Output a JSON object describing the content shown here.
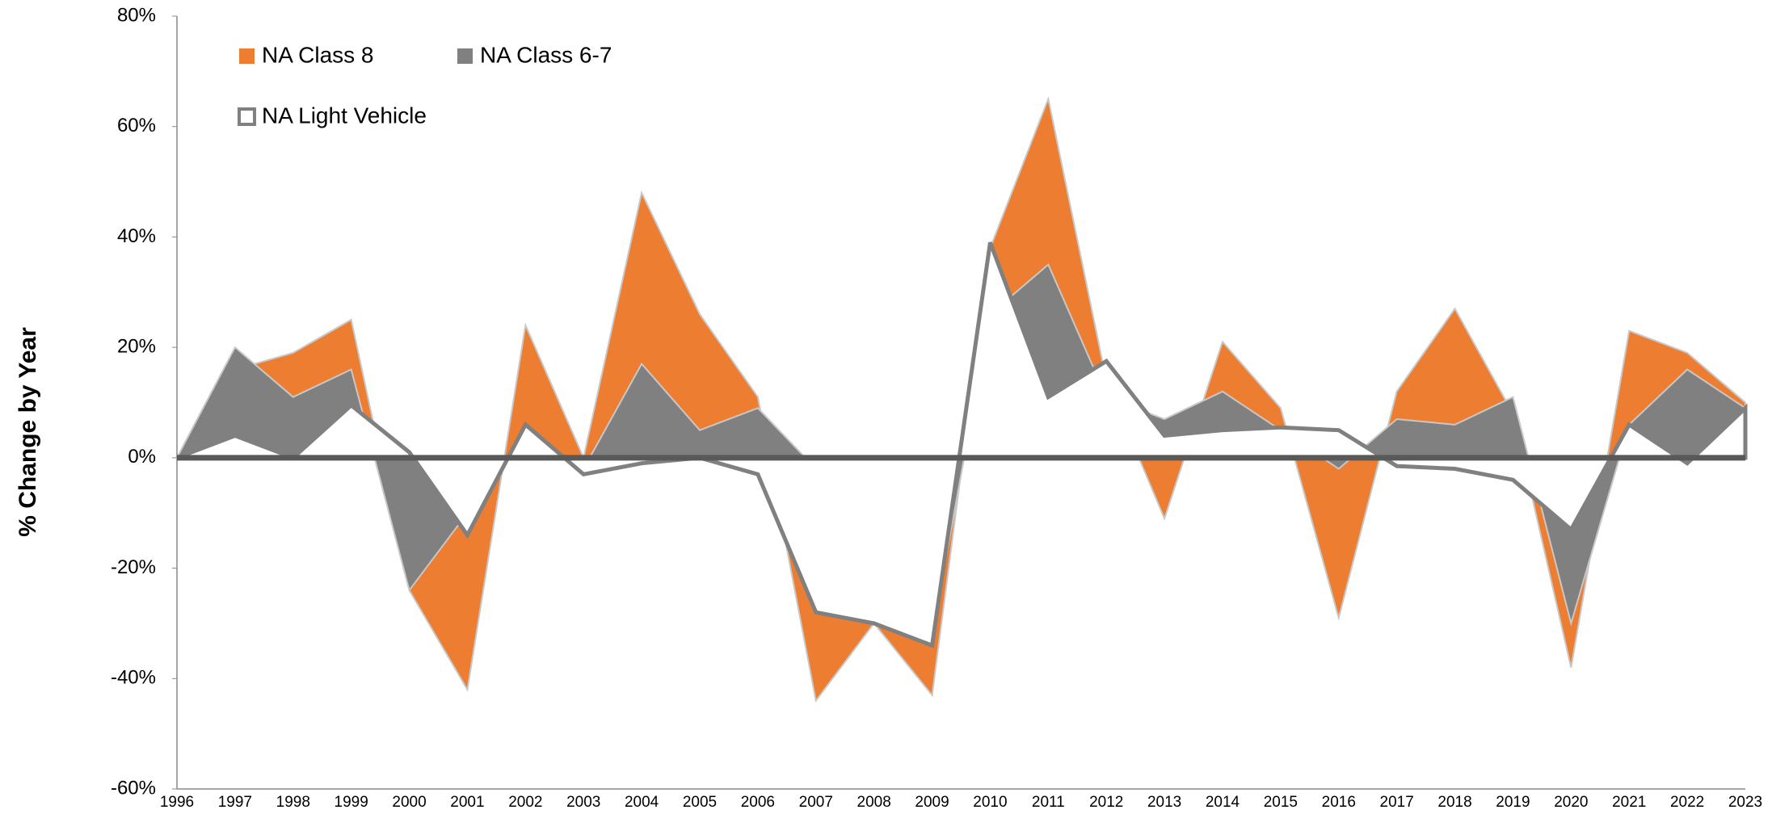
{
  "chart_data": {
    "type": "area",
    "y_axis_label": "% Change by Year",
    "categories": [
      "1996",
      "1997",
      "1998",
      "1999",
      "2000",
      "2001",
      "2002",
      "2003",
      "2004",
      "2005",
      "2006",
      "2007",
      "2008",
      "2009",
      "2010",
      "2011",
      "2012",
      "2013",
      "2014",
      "2015",
      "2016",
      "2017",
      "2018",
      "2019",
      "2020",
      "2021",
      "2022",
      "2023"
    ],
    "series": [
      {
        "name": "NA Class 8",
        "color": "#ed7d31",
        "style": "filled",
        "values": [
          0,
          16,
          19,
          25,
          -24,
          -42,
          24,
          0,
          48,
          26,
          11,
          -44,
          -30,
          -43,
          38,
          65,
          14,
          -11,
          21,
          9,
          -29,
          12,
          27,
          8,
          -38,
          23,
          19,
          10
        ]
      },
      {
        "name": "NA Class 6-7",
        "color": "#808080",
        "style": "filled",
        "values": [
          0,
          20,
          11,
          16,
          -24,
          -10,
          5,
          -2,
          17,
          5,
          9,
          -2,
          -16,
          -32,
          26,
          35,
          11,
          7,
          12,
          5,
          -2,
          7,
          6,
          11,
          -30,
          6,
          16,
          9
        ]
      },
      {
        "name": "NA Light Vehicle",
        "color": "#808080",
        "style": "outline",
        "values": [
          0,
          4,
          0,
          9.5,
          1,
          -14,
          6,
          -3,
          -1,
          0,
          -3,
          -28,
          -30,
          -34,
          39,
          11,
          17.5,
          4,
          5,
          5.5,
          5,
          -1.5,
          -2,
          -4,
          -13,
          6,
          -1,
          9
        ]
      }
    ],
    "ylim": [
      -60,
      80
    ],
    "yticks": [
      {
        "value": -60,
        "label": "-60%"
      },
      {
        "value": -40,
        "label": "-40%"
      },
      {
        "value": -20,
        "label": "-20%"
      },
      {
        "value": 0,
        "label": "0%"
      },
      {
        "value": 20,
        "label": "20%"
      },
      {
        "value": 40,
        "label": "40%"
      },
      {
        "value": 60,
        "label": "60%"
      },
      {
        "value": 80,
        "label": "80%"
      }
    ],
    "legend": "top-left"
  }
}
